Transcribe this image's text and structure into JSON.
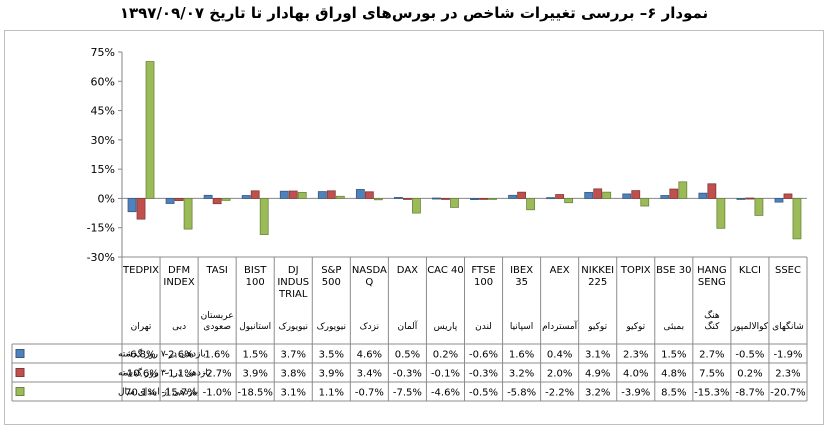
{
  "title": "نمودار ۶– بررسی تغییرات شاخص در بورس‌های اوراق بهادار تا تاریخ ۱۳۹۷/۰۹/۰۷",
  "chart_data": {
    "type": "bar",
    "ylim": [
      -30,
      75
    ],
    "yticks": [
      "75%",
      "60%",
      "45%",
      "30%",
      "15%",
      "0%",
      "-15%",
      "-30%"
    ],
    "ytick_values": [
      75,
      60,
      45,
      30,
      15,
      0,
      -15,
      -30
    ],
    "grid": false,
    "legend": "table",
    "categories": [
      "TEDPIX",
      "DFM INDEX",
      "TASI",
      "BIST 100",
      "DJ INDUS TRIAL",
      "S&P 500",
      "NASDA Q",
      "DAX",
      "CAC 40",
      "FTSE 100",
      "IBEX 35",
      "AEX",
      "NIKKEI 225",
      "TOPIX",
      "BSE 30",
      "HANG SENG",
      "KLCI",
      "SSEC"
    ],
    "category_lines": [
      [
        "TEDPIX"
      ],
      [
        "DFM",
        "INDEX"
      ],
      [
        "TASI"
      ],
      [
        "BIST",
        "100"
      ],
      [
        "DJ",
        "INDUS",
        "TRIAL"
      ],
      [
        "S&P",
        "500"
      ],
      [
        "NASDA",
        "Q"
      ],
      [
        "DAX"
      ],
      [
        "CAC 40"
      ],
      [
        "FTSE",
        "100"
      ],
      [
        "IBEX",
        "35"
      ],
      [
        "AEX"
      ],
      [
        "NIKKEI",
        "225"
      ],
      [
        "TOPIX"
      ],
      [
        "BSE 30"
      ],
      [
        "HANG",
        "SENG"
      ],
      [
        "KLCI"
      ],
      [
        "SSEC"
      ]
    ],
    "locations": [
      [
        "تهران"
      ],
      [
        "دبی"
      ],
      [
        "عربستان",
        "صعودی"
      ],
      [
        "استانبول"
      ],
      [
        "نیویورک"
      ],
      [
        "نیویورک"
      ],
      [
        "نزدک"
      ],
      [
        "آلمان"
      ],
      [
        "پاریس"
      ],
      [
        "لندن"
      ],
      [
        "اسپانیا"
      ],
      [
        "آمستردام"
      ],
      [
        "توکیو"
      ],
      [
        "توکیو"
      ],
      [
        "بمبئی"
      ],
      [
        "هنگ",
        "کنگ"
      ],
      [
        "کوالالمپور"
      ],
      [
        "شانگهای"
      ]
    ],
    "series": [
      {
        "name": "بازدهی در ۷ روز گذشته",
        "color": "#4f81bd",
        "values": [
          -6.8,
          -2.6,
          1.6,
          1.5,
          3.7,
          3.5,
          4.6,
          0.5,
          0.2,
          -0.6,
          1.6,
          0.4,
          3.1,
          2.3,
          1.5,
          2.7,
          -0.5,
          -1.9
        ],
        "labels": [
          "-6.8%",
          "-2.6%",
          "1.6%",
          "1.5%",
          "3.7%",
          "3.5%",
          "4.6%",
          "0.5%",
          "0.2%",
          "-0.6%",
          "1.6%",
          "0.4%",
          "3.1%",
          "2.3%",
          "1.5%",
          "2.7%",
          "-0.5%",
          "-1.9%"
        ]
      },
      {
        "name": "بازدهی در ۳۰ روز گذشته",
        "color": "#c0504d",
        "values": [
          -10.6,
          -1.1,
          -2.7,
          3.9,
          3.8,
          3.9,
          3.4,
          -0.3,
          -0.1,
          -0.3,
          3.2,
          2.0,
          4.9,
          4.0,
          4.8,
          7.5,
          0.2,
          2.3
        ],
        "labels": [
          "-10.6%",
          "-1.1%",
          "-2.7%",
          "3.9%",
          "3.8%",
          "3.9%",
          "3.4%",
          "-0.3%",
          "-0.1%",
          "-0.3%",
          "3.2%",
          "2.0%",
          "4.9%",
          "4.0%",
          "4.8%",
          "7.5%",
          "0.2%",
          "2.3%"
        ]
      },
      {
        "name": "بازدهی از ابتدای سال",
        "color": "#9bbb59",
        "values": [
          70.1,
          -15.7,
          -1.0,
          -18.5,
          3.1,
          1.1,
          -0.7,
          -7.5,
          -4.6,
          -0.5,
          -5.8,
          -2.2,
          3.2,
          -3.9,
          8.5,
          -15.3,
          -8.7,
          -20.7
        ],
        "labels": [
          "70.1%",
          "-15.7%",
          "-1.0%",
          "-18.5%",
          "3.1%",
          "1.1%",
          "-0.7%",
          "-7.5%",
          "-4.6%",
          "-0.5%",
          "-5.8%",
          "-2.2%",
          "3.2%",
          "-3.9%",
          "8.5%",
          "-15.3%",
          "-8.7%",
          "-20.7%"
        ]
      }
    ]
  }
}
